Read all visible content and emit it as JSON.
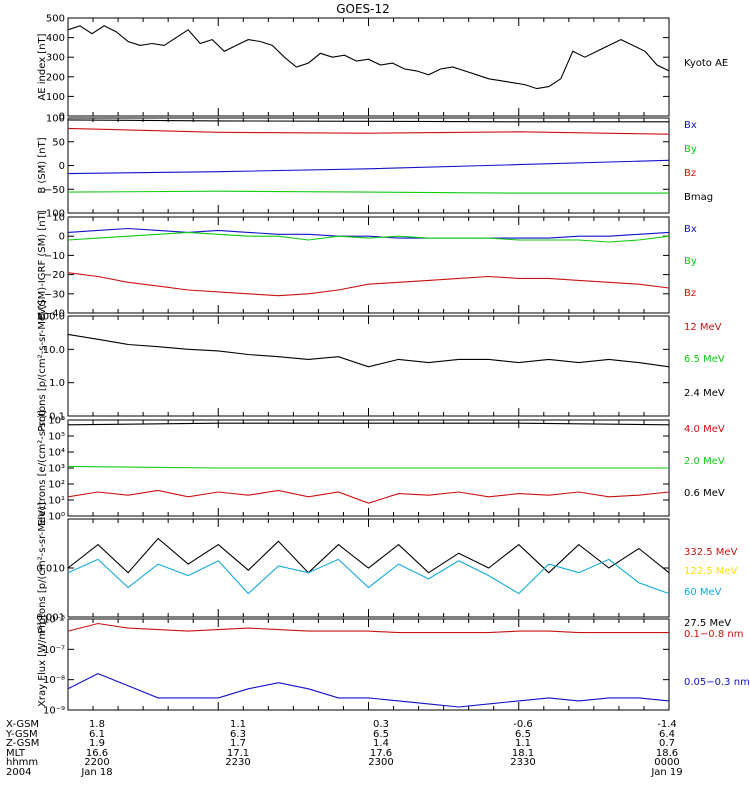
{
  "title": "GOES-12",
  "colors": {
    "black": "#000000",
    "red": "#cc1111",
    "green": "#11cc11",
    "blue": "#1111cc",
    "yellow": "#ffe000",
    "cyan": "#11aadd"
  },
  "ephemeris": {
    "row_labels": [
      "X-GSM",
      "Y-GSM",
      "Z-GSM",
      "MLT",
      "hhmm",
      "2004"
    ],
    "columns": [
      {
        "values": [
          "1.8",
          "6.1",
          "1.9",
          "16.6",
          "2200",
          "Jan 18"
        ]
      },
      {
        "values": [
          "1.1",
          "6.3",
          "1.7",
          "17.1",
          "2230",
          ""
        ]
      },
      {
        "values": [
          "0.3",
          "6.5",
          "1.4",
          "17.6",
          "2300",
          ""
        ]
      },
      {
        "values": [
          "-0.6",
          "6.5",
          "1.1",
          "18.1",
          "2330",
          ""
        ]
      },
      {
        "values": [
          "-1.4",
          "6.4",
          "0.7",
          "18.6",
          "0000",
          "Jan 19"
        ]
      }
    ]
  },
  "chart_data": [
    {
      "type": "line",
      "ylabel": "AE index [nT]",
      "ylim": [
        0,
        500
      ],
      "ticks": [
        {
          "v": 0,
          "l": "0"
        },
        {
          "v": 100,
          "l": "100"
        },
        {
          "v": 200,
          "l": "200"
        },
        {
          "v": 300,
          "l": "300"
        },
        {
          "v": 400,
          "l": "400"
        },
        {
          "v": 500,
          "l": "500"
        }
      ],
      "legend": [
        {
          "name": "Kyoto AE",
          "color": "#000000"
        }
      ],
      "series": [
        {
          "name": "Kyoto AE",
          "color": "#000000",
          "x": [
            0,
            0.02,
            0.04,
            0.06,
            0.08,
            0.1,
            0.12,
            0.14,
            0.16,
            0.18,
            0.2,
            0.22,
            0.24,
            0.26,
            0.28,
            0.3,
            0.32,
            0.34,
            0.36,
            0.38,
            0.4,
            0.42,
            0.44,
            0.46,
            0.48,
            0.5,
            0.52,
            0.54,
            0.56,
            0.58,
            0.6,
            0.62,
            0.64,
            0.66,
            0.68,
            0.7,
            0.72,
            0.74,
            0.76,
            0.78,
            0.8,
            0.82,
            0.84,
            0.86,
            0.88,
            0.9,
            0.92,
            0.94,
            0.96,
            0.98,
            1.0
          ],
          "y": [
            440,
            460,
            420,
            460,
            430,
            380,
            360,
            370,
            360,
            400,
            440,
            370,
            390,
            330,
            360,
            390,
            380,
            360,
            300,
            250,
            270,
            320,
            300,
            310,
            280,
            290,
            260,
            270,
            240,
            230,
            210,
            240,
            250,
            230,
            210,
            190,
            180,
            170,
            160,
            140,
            150,
            190,
            330,
            300,
            330,
            360,
            390,
            360,
            330,
            260,
            230
          ]
        }
      ]
    },
    {
      "type": "line",
      "ylabel": "B (SM) [nT]",
      "ylim": [
        -100,
        100
      ],
      "ticks": [
        {
          "v": -100,
          "l": "−100"
        },
        {
          "v": -50,
          "l": "−50"
        },
        {
          "v": 0,
          "l": "0"
        },
        {
          "v": 50,
          "l": "50"
        },
        {
          "v": 100,
          "l": "100"
        }
      ],
      "legend": [
        {
          "name": "Bx",
          "color": "#1111cc"
        },
        {
          "name": "By",
          "color": "#11cc11"
        },
        {
          "name": "Bz",
          "color": "#cc1111"
        },
        {
          "name": "Bmag",
          "color": "#000000"
        }
      ],
      "series": [
        {
          "name": "Bmag",
          "color": "#000000",
          "x": [
            0,
            0.25,
            0.5,
            0.75,
            1.0
          ],
          "y": [
            96,
            94,
            93,
            92,
            92
          ]
        },
        {
          "name": "Bz",
          "color": "#cc1111",
          "x": [
            0,
            0.25,
            0.5,
            0.75,
            1.0
          ],
          "y": [
            78,
            70,
            68,
            71,
            66
          ]
        },
        {
          "name": "Bx",
          "color": "#1111cc",
          "x": [
            0,
            0.25,
            0.5,
            0.75,
            1.0
          ],
          "y": [
            -17,
            -13,
            -7,
            2,
            11
          ]
        },
        {
          "name": "By",
          "color": "#11cc11",
          "x": [
            0,
            0.25,
            0.5,
            0.75,
            1.0
          ],
          "y": [
            -56,
            -54,
            -56,
            -58,
            -58
          ]
        }
      ]
    },
    {
      "type": "line",
      "ylabel": "B (SM)-IGRF (SM) [nT]",
      "ylim": [
        -40,
        10
      ],
      "ticks": [
        {
          "v": -40,
          "l": "−40"
        },
        {
          "v": -30,
          "l": "−30"
        },
        {
          "v": -20,
          "l": "−20"
        },
        {
          "v": -10,
          "l": "−10"
        },
        {
          "v": 0,
          "l": "0"
        },
        {
          "v": 10,
          "l": "10"
        }
      ],
      "legend": [
        {
          "name": "Bx",
          "color": "#1111cc"
        },
        {
          "name": "By",
          "color": "#11cc11"
        },
        {
          "name": "Bz",
          "color": "#cc1111"
        }
      ],
      "series": [
        {
          "name": "Bx",
          "color": "#1111cc",
          "x": [
            0,
            0.05,
            0.1,
            0.15,
            0.2,
            0.25,
            0.3,
            0.35,
            0.4,
            0.45,
            0.5,
            0.55,
            0.6,
            0.65,
            0.7,
            0.75,
            0.8,
            0.85,
            0.9,
            0.95,
            1.0
          ],
          "y": [
            2,
            3,
            4,
            3,
            2,
            3,
            2,
            1,
            1,
            0,
            0,
            -1,
            -1,
            -1,
            -1,
            -1,
            -1,
            0,
            0,
            1,
            2
          ]
        },
        {
          "name": "By",
          "color": "#11cc11",
          "x": [
            0,
            0.05,
            0.1,
            0.15,
            0.2,
            0.25,
            0.3,
            0.35,
            0.4,
            0.45,
            0.5,
            0.55,
            0.6,
            0.65,
            0.7,
            0.75,
            0.8,
            0.85,
            0.9,
            0.95,
            1.0
          ],
          "y": [
            -2,
            -1,
            0,
            1,
            2,
            1,
            0,
            0,
            -2,
            0,
            -1,
            0,
            -1,
            -1,
            -1,
            -2,
            -2,
            -2,
            -3,
            -2,
            0
          ]
        },
        {
          "name": "Bz",
          "color": "#cc1111",
          "x": [
            0,
            0.05,
            0.1,
            0.15,
            0.2,
            0.25,
            0.3,
            0.35,
            0.4,
            0.45,
            0.5,
            0.55,
            0.6,
            0.65,
            0.7,
            0.75,
            0.8,
            0.85,
            0.9,
            0.95,
            1.0
          ],
          "y": [
            -19,
            -21,
            -24,
            -26,
            -28,
            -29,
            -30,
            -31,
            -30,
            -28,
            -25,
            -24,
            -23,
            -22,
            -21,
            -22,
            -22,
            -23,
            -24,
            -25,
            -27
          ]
        }
      ]
    },
    {
      "type": "line",
      "ylabel": "Protons [p/(cm²-s-sr-MeV)]",
      "yscale": "log",
      "ylim": [
        0.1,
        100
      ],
      "ticks": [
        {
          "v": 0.1,
          "l": "0.1"
        },
        {
          "v": 1,
          "l": "1.0"
        },
        {
          "v": 10,
          "l": "10.0"
        },
        {
          "v": 100,
          "l": "100.0"
        }
      ],
      "legend": [
        {
          "name": "12 MeV",
          "color": "#cc1111"
        },
        {
          "name": "6.5 MeV",
          "color": "#11cc11"
        },
        {
          "name": "2.4 MeV",
          "color": "#000000"
        }
      ],
      "series": [
        {
          "name": "2.4 MeV",
          "color": "#000000",
          "x": [
            0,
            0.05,
            0.1,
            0.15,
            0.2,
            0.25,
            0.3,
            0.35,
            0.4,
            0.45,
            0.5,
            0.55,
            0.6,
            0.65,
            0.7,
            0.75,
            0.8,
            0.85,
            0.9,
            0.95,
            1.0
          ],
          "y": [
            28,
            20,
            14,
            12,
            10,
            9,
            7,
            6,
            5,
            6,
            3,
            5,
            4,
            5,
            5,
            4,
            5,
            4,
            5,
            4,
            3
          ]
        }
      ]
    },
    {
      "type": "line",
      "ylabel": "Electrons [e/(cm²-s-sr)]",
      "yscale": "log",
      "ylim": [
        0,
        6
      ],
      "ticks": [
        {
          "v": 0,
          "l": "10⁰"
        },
        {
          "v": 1,
          "l": "10¹"
        },
        {
          "v": 2,
          "l": "10²"
        },
        {
          "v": 3,
          "l": "10³"
        },
        {
          "v": 4,
          "l": "10⁴"
        },
        {
          "v": 5,
          "l": "10⁵"
        },
        {
          "v": 6,
          "l": "10⁶"
        }
      ],
      "legend": [
        {
          "name": "4.0 MeV",
          "color": "#cc1111"
        },
        {
          "name": "2.0 MeV",
          "color": "#11cc11"
        },
        {
          "name": "0.6 MeV",
          "color": "#000000"
        }
      ],
      "series": [
        {
          "name": "0.6 MeV",
          "color": "#000000",
          "x": [
            0,
            0.25,
            0.5,
            0.75,
            1.0
          ],
          "y": [
            5.7,
            5.8,
            5.8,
            5.8,
            5.7
          ]
        },
        {
          "name": "2.0 MeV",
          "color": "#11cc11",
          "x": [
            0,
            0.25,
            0.5,
            0.75,
            1.0
          ],
          "y": [
            3.1,
            3.0,
            3.0,
            3.0,
            3.0
          ]
        },
        {
          "name": "4.0 MeV",
          "color": "#cc1111",
          "x": [
            0,
            0.05,
            0.1,
            0.15,
            0.2,
            0.25,
            0.3,
            0.35,
            0.4,
            0.45,
            0.5,
            0.55,
            0.6,
            0.65,
            0.7,
            0.75,
            0.8,
            0.85,
            0.9,
            0.95,
            1.0
          ],
          "y": [
            1.2,
            1.5,
            1.3,
            1.6,
            1.2,
            1.5,
            1.3,
            1.6,
            1.2,
            1.5,
            0.8,
            1.4,
            1.3,
            1.5,
            1.2,
            1.4,
            1.3,
            1.5,
            1.2,
            1.3,
            1.5
          ]
        }
      ]
    },
    {
      "type": "line",
      "ylabel": "Protons [p/(cm²-s-sr-MeV)]",
      "yscale": "log",
      "ylim": [
        0.001,
        0.1
      ],
      "ticks": [
        {
          "v": 0.001,
          "l": "0.001"
        },
        {
          "v": 0.01,
          "l": "0.010"
        }
      ],
      "legend": [
        {
          "name": "332.5 MeV",
          "color": "#cc1111"
        },
        {
          "name": "122.5 MeV",
          "color": "#ffe000"
        },
        {
          "name": "60 MeV",
          "color": "#11aadd"
        },
        {
          "name": "27.5 MeV",
          "color": "#000000"
        }
      ],
      "series": [
        {
          "name": "27.5 MeV",
          "color": "#000000",
          "x": [
            0,
            0.05,
            0.1,
            0.15,
            0.2,
            0.25,
            0.3,
            0.35,
            0.4,
            0.45,
            0.5,
            0.55,
            0.6,
            0.65,
            0.7,
            0.75,
            0.8,
            0.85,
            0.9,
            0.95,
            1.0
          ],
          "y": [
            0.01,
            0.03,
            0.008,
            0.04,
            0.012,
            0.03,
            0.009,
            0.035,
            0.008,
            0.03,
            0.01,
            0.03,
            0.008,
            0.02,
            0.01,
            0.03,
            0.008,
            0.03,
            0.01,
            0.025,
            0.008
          ]
        },
        {
          "name": "60 MeV",
          "color": "#11aadd",
          "x": [
            0,
            0.05,
            0.1,
            0.15,
            0.2,
            0.25,
            0.3,
            0.35,
            0.4,
            0.45,
            0.5,
            0.55,
            0.6,
            0.65,
            0.7,
            0.75,
            0.8,
            0.85,
            0.9,
            0.95,
            1.0
          ],
          "y": [
            0.008,
            0.015,
            0.004,
            0.012,
            0.007,
            0.014,
            0.003,
            0.011,
            0.008,
            0.015,
            0.004,
            0.012,
            0.006,
            0.014,
            0.007,
            0.003,
            0.012,
            0.008,
            0.015,
            0.005,
            0.003
          ]
        }
      ]
    },
    {
      "type": "line",
      "ylabel": "Xray Flux [W/m²]",
      "yscale": "log",
      "ylim": [
        -9,
        -6
      ],
      "ticks": [
        {
          "v": -9,
          "l": "10⁻⁹"
        },
        {
          "v": -8,
          "l": "10⁻⁸"
        },
        {
          "v": -7,
          "l": "10⁻⁷"
        },
        {
          "v": -6,
          "l": "10⁻⁶"
        }
      ],
      "legend": [
        {
          "name": "0.1−0.8 nm",
          "color": "#cc1111"
        },
        {
          "name": "0.05−0.3 nm",
          "color": "#1111cc"
        }
      ],
      "series": [
        {
          "name": "0.1−0.8 nm",
          "color": "#cc1111",
          "x": [
            0,
            0.05,
            0.1,
            0.15,
            0.2,
            0.25,
            0.3,
            0.35,
            0.4,
            0.45,
            0.5,
            0.55,
            0.6,
            0.65,
            0.7,
            0.75,
            0.8,
            0.85,
            0.9,
            0.95,
            1.0
          ],
          "y": [
            -6.4,
            -6.15,
            -6.3,
            -6.35,
            -6.4,
            -6.35,
            -6.3,
            -6.35,
            -6.4,
            -6.4,
            -6.4,
            -6.45,
            -6.45,
            -6.45,
            -6.45,
            -6.4,
            -6.4,
            -6.45,
            -6.45,
            -6.45,
            -6.45
          ]
        },
        {
          "name": "0.05−0.3 nm",
          "color": "#1111cc",
          "x": [
            0,
            0.05,
            0.1,
            0.15,
            0.2,
            0.25,
            0.3,
            0.35,
            0.4,
            0.45,
            0.5,
            0.55,
            0.6,
            0.65,
            0.7,
            0.75,
            0.8,
            0.85,
            0.9,
            0.95,
            1.0
          ],
          "y": [
            -8.3,
            -7.8,
            -8.2,
            -8.6,
            -8.6,
            -8.6,
            -8.3,
            -8.1,
            -8.3,
            -8.6,
            -8.6,
            -8.7,
            -8.8,
            -8.9,
            -8.8,
            -8.7,
            -8.6,
            -8.7,
            -8.6,
            -8.6,
            -8.7
          ]
        }
      ]
    }
  ]
}
